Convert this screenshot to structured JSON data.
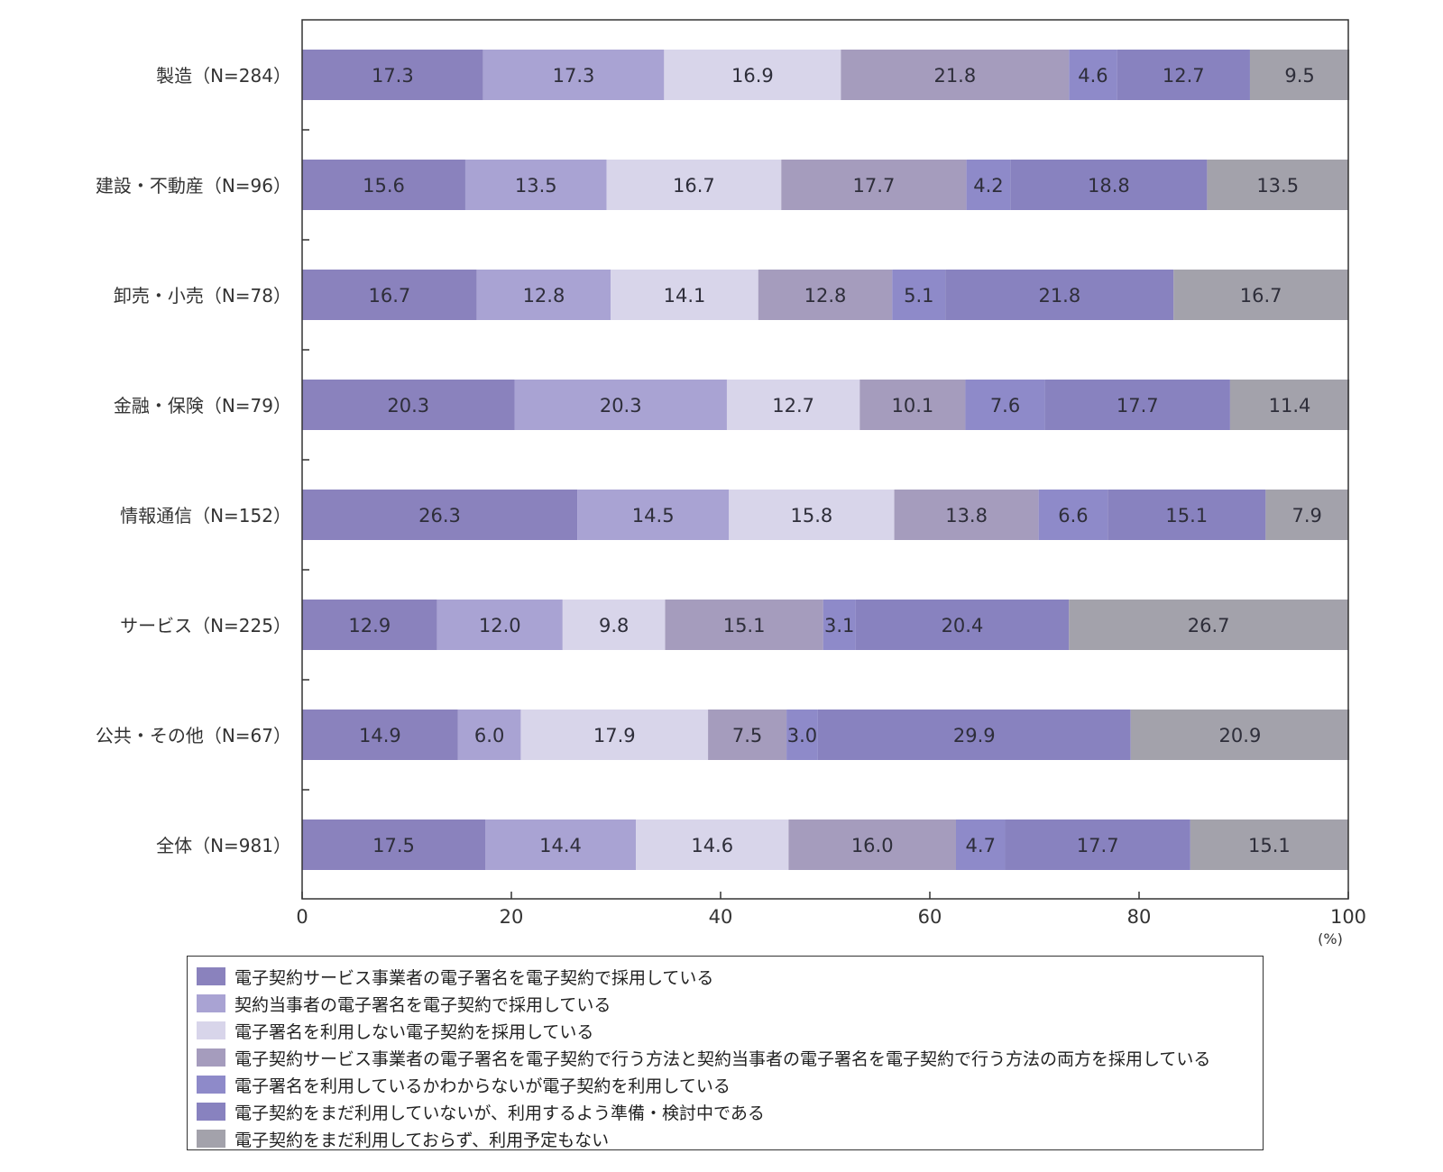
{
  "chart_data": {
    "type": "stacked-bar-horizontal",
    "categories": [
      "製造（N=284）",
      "建設・不動産（N=96）",
      "卸売・小売（N=78）",
      "金融・保険（N=79）",
      "情報通信（N=152）",
      "サービス（N=225）",
      "公共・その他（N=67）",
      "全体（N=981）"
    ],
    "series": [
      {
        "name": "電子契約サービス事業者の電子署名を電子契約で採用している",
        "color": "#8a82bd",
        "values": [
          17.3,
          15.6,
          16.7,
          20.3,
          26.3,
          12.9,
          14.9,
          17.5
        ]
      },
      {
        "name": "契約当事者の電子署名を電子契約で採用している",
        "color": "#a9a3d3",
        "values": [
          17.3,
          13.5,
          12.8,
          20.3,
          14.5,
          12.0,
          6.0,
          14.4
        ]
      },
      {
        "name": "電子署名を利用しない電子契約を採用している",
        "color": "#d8d5ea",
        "values": [
          16.9,
          16.7,
          14.1,
          12.7,
          15.8,
          9.8,
          17.9,
          14.6
        ]
      },
      {
        "name": "電子契約サービス事業者の電子署名を電子契約で行う方法と契約当事者の電子署名を電子契約で行う方法の両方を採用している",
        "color": "#a59cbd",
        "values": [
          21.8,
          17.7,
          12.8,
          10.1,
          13.8,
          15.1,
          7.5,
          16.0
        ]
      },
      {
        "name": "電子署名を利用しているかわからないが電子契約を利用している",
        "color": "#8e8ac9",
        "values": [
          4.6,
          4.2,
          5.1,
          7.6,
          6.6,
          3.1,
          3.0,
          4.7
        ]
      },
      {
        "name": "電子契約をまだ利用していないが、利用するよう準備・検討中である",
        "color": "#8882bf",
        "values": [
          12.7,
          18.8,
          21.8,
          17.7,
          15.1,
          20.4,
          29.9,
          17.7
        ]
      },
      {
        "name": "電子契約をまだ利用しておらず、利用予定もない",
        "color": "#a3a2ab",
        "values": [
          9.5,
          13.5,
          16.7,
          11.4,
          7.9,
          26.7,
          20.9,
          15.1
        ]
      }
    ],
    "xlim": [
      0,
      100
    ],
    "xticks": [
      0,
      20,
      40,
      60,
      80,
      100
    ],
    "xunit": "(%)",
    "title": "",
    "xlabel": "",
    "ylabel": "",
    "legend_position": "bottom"
  }
}
